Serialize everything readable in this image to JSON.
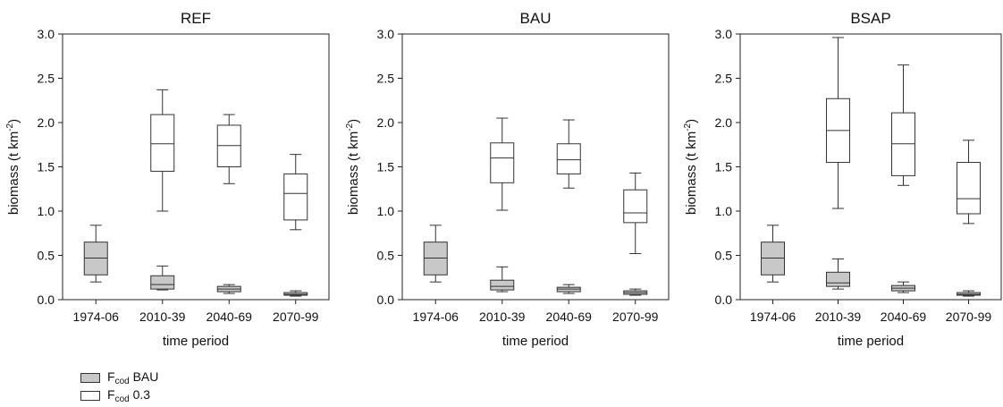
{
  "chart_data": [
    {
      "type": "boxplot",
      "title": "REF",
      "xlabel": "time period",
      "ylabel": "biomass (t km",
      "ylabel_sup": "-2",
      "ylabel_end": ")",
      "categories": [
        "1974-06",
        "2010-39",
        "2040-69",
        "2070-99"
      ],
      "ylim": [
        0,
        3
      ],
      "yticks": [
        "0.0",
        "0.5",
        "1.0",
        "1.5",
        "2.0",
        "2.5",
        "3.0"
      ],
      "series": [
        {
          "name": "F_cod BAU",
          "color": "#c8c8c8",
          "boxes": [
            {
              "min": 0.2,
              "q1": 0.28,
              "median": 0.47,
              "q3": 0.65,
              "max": 0.84
            },
            {
              "min": 0.11,
              "q1": 0.12,
              "median": 0.17,
              "q3": 0.27,
              "max": 0.38
            },
            {
              "min": 0.07,
              "q1": 0.09,
              "median": 0.12,
              "q3": 0.15,
              "max": 0.17
            },
            {
              "min": 0.04,
              "q1": 0.05,
              "median": 0.06,
              "q3": 0.08,
              "max": 0.1
            }
          ]
        },
        {
          "name": "F_cod 0.3",
          "color": "#ffffff",
          "boxes": [
            null,
            {
              "min": 1.0,
              "q1": 1.45,
              "median": 1.76,
              "q3": 2.09,
              "max": 2.37
            },
            {
              "min": 1.31,
              "q1": 1.5,
              "median": 1.74,
              "q3": 1.97,
              "max": 2.09
            },
            {
              "min": 0.79,
              "q1": 0.9,
              "median": 1.2,
              "q3": 1.42,
              "max": 1.64
            }
          ]
        }
      ]
    },
    {
      "type": "boxplot",
      "title": "BAU",
      "xlabel": "time period",
      "ylabel": "biomass (t km",
      "ylabel_sup": "-2",
      "ylabel_end": ")",
      "categories": [
        "1974-06",
        "2010-39",
        "2040-69",
        "2070-99"
      ],
      "ylim": [
        0,
        3
      ],
      "yticks": [
        "0.0",
        "0.5",
        "1.0",
        "1.5",
        "2.0",
        "2.5",
        "3.0"
      ],
      "series": [
        {
          "name": "F_cod BAU",
          "color": "#c8c8c8",
          "boxes": [
            {
              "min": 0.2,
              "q1": 0.28,
              "median": 0.47,
              "q3": 0.65,
              "max": 0.84
            },
            {
              "min": 0.09,
              "q1": 0.11,
              "median": 0.15,
              "q3": 0.22,
              "max": 0.37
            },
            {
              "min": 0.07,
              "q1": 0.09,
              "median": 0.12,
              "q3": 0.14,
              "max": 0.17
            },
            {
              "min": 0.05,
              "q1": 0.06,
              "median": 0.08,
              "q3": 0.1,
              "max": 0.12
            }
          ]
        },
        {
          "name": "F_cod 0.3",
          "color": "#ffffff",
          "boxes": [
            null,
            {
              "min": 1.01,
              "q1": 1.32,
              "median": 1.6,
              "q3": 1.77,
              "max": 2.05
            },
            {
              "min": 1.26,
              "q1": 1.42,
              "median": 1.58,
              "q3": 1.76,
              "max": 2.03
            },
            {
              "min": 0.52,
              "q1": 0.87,
              "median": 0.98,
              "q3": 1.24,
              "max": 1.43
            }
          ]
        }
      ]
    },
    {
      "type": "boxplot",
      "title": "BSAP",
      "xlabel": "time period",
      "ylabel": "biomass (t km",
      "ylabel_sup": "-2",
      "ylabel_end": ")",
      "categories": [
        "1974-06",
        "2010-39",
        "2040-69",
        "2070-99"
      ],
      "ylim": [
        0,
        3
      ],
      "yticks": [
        "0.0",
        "0.5",
        "1.0",
        "1.5",
        "2.0",
        "2.5",
        "3.0"
      ],
      "series": [
        {
          "name": "F_cod BAU",
          "color": "#c8c8c8",
          "boxes": [
            {
              "min": 0.2,
              "q1": 0.28,
              "median": 0.47,
              "q3": 0.65,
              "max": 0.84
            },
            {
              "min": 0.12,
              "q1": 0.15,
              "median": 0.19,
              "q3": 0.31,
              "max": 0.46
            },
            {
              "min": 0.08,
              "q1": 0.1,
              "median": 0.13,
              "q3": 0.16,
              "max": 0.2
            },
            {
              "min": 0.04,
              "q1": 0.05,
              "median": 0.06,
              "q3": 0.08,
              "max": 0.1
            }
          ]
        },
        {
          "name": "F_cod 0.3",
          "color": "#ffffff",
          "boxes": [
            null,
            {
              "min": 1.03,
              "q1": 1.55,
              "median": 1.91,
              "q3": 2.27,
              "max": 2.96
            },
            {
              "min": 1.29,
              "q1": 1.4,
              "median": 1.76,
              "q3": 2.11,
              "max": 2.65
            },
            {
              "min": 0.86,
              "q1": 0.97,
              "median": 1.14,
              "q3": 1.55,
              "max": 1.8
            }
          ]
        }
      ]
    }
  ],
  "legend": {
    "items": [
      {
        "main": "F",
        "sub": "cod",
        "rest": " BAU",
        "color": "#c8c8c8"
      },
      {
        "main": "F",
        "sub": "cod",
        "rest": " 0.3",
        "color": "#ffffff"
      }
    ]
  }
}
